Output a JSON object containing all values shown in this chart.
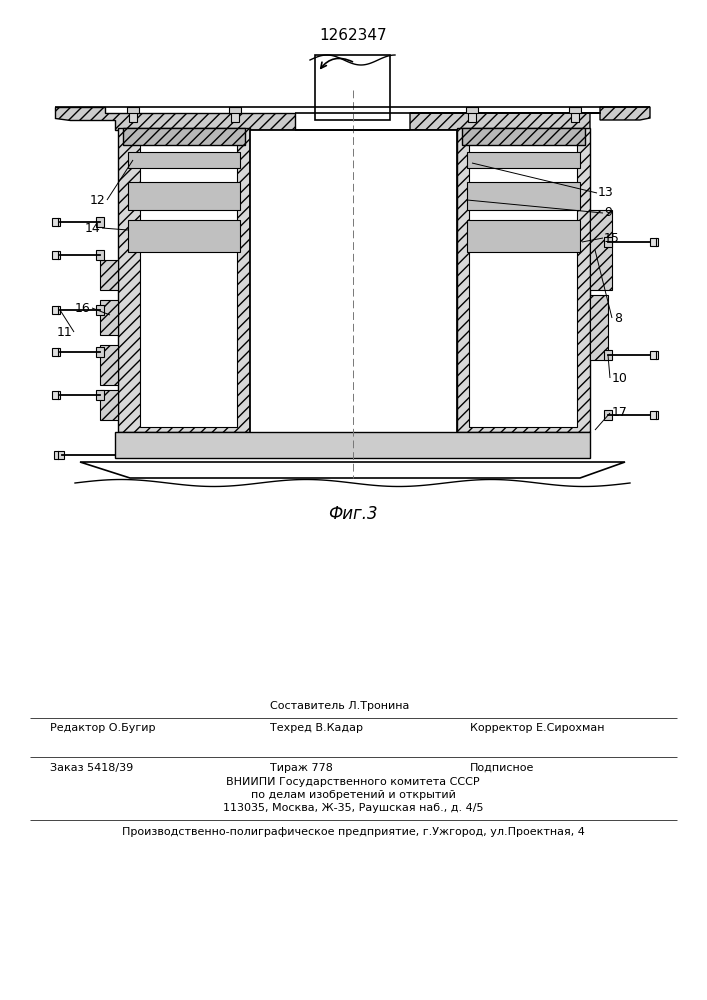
{
  "patent_number": "1262347",
  "fig_label": "Фиг.3",
  "background_color": "#ffffff",
  "line_color": "#000000",
  "footer_line1_left": "Редактор О.Бугир",
  "footer_line1_center": "Составитель Л.Тронина",
  "footer_line1_right": "Корректор Е.Сирохман",
  "footer_line2_center": "Техред В.Кадар",
  "footer_order": "Заказ 5418/39",
  "footer_tirazh": "Тираж 778",
  "footer_podpisnoe": "Подписное",
  "footer_vniipи": "ВНИИПИ Государственного комитета СССР",
  "footer_po_delam": "по делам изобретений и открытий",
  "footer_address": "113035, Москва, Ж-35, Раушская наб., д. 4/5",
  "footer_production": "Производственно-полиграфическое предприятие, г.Ужгород, ул.Проектная, 4"
}
